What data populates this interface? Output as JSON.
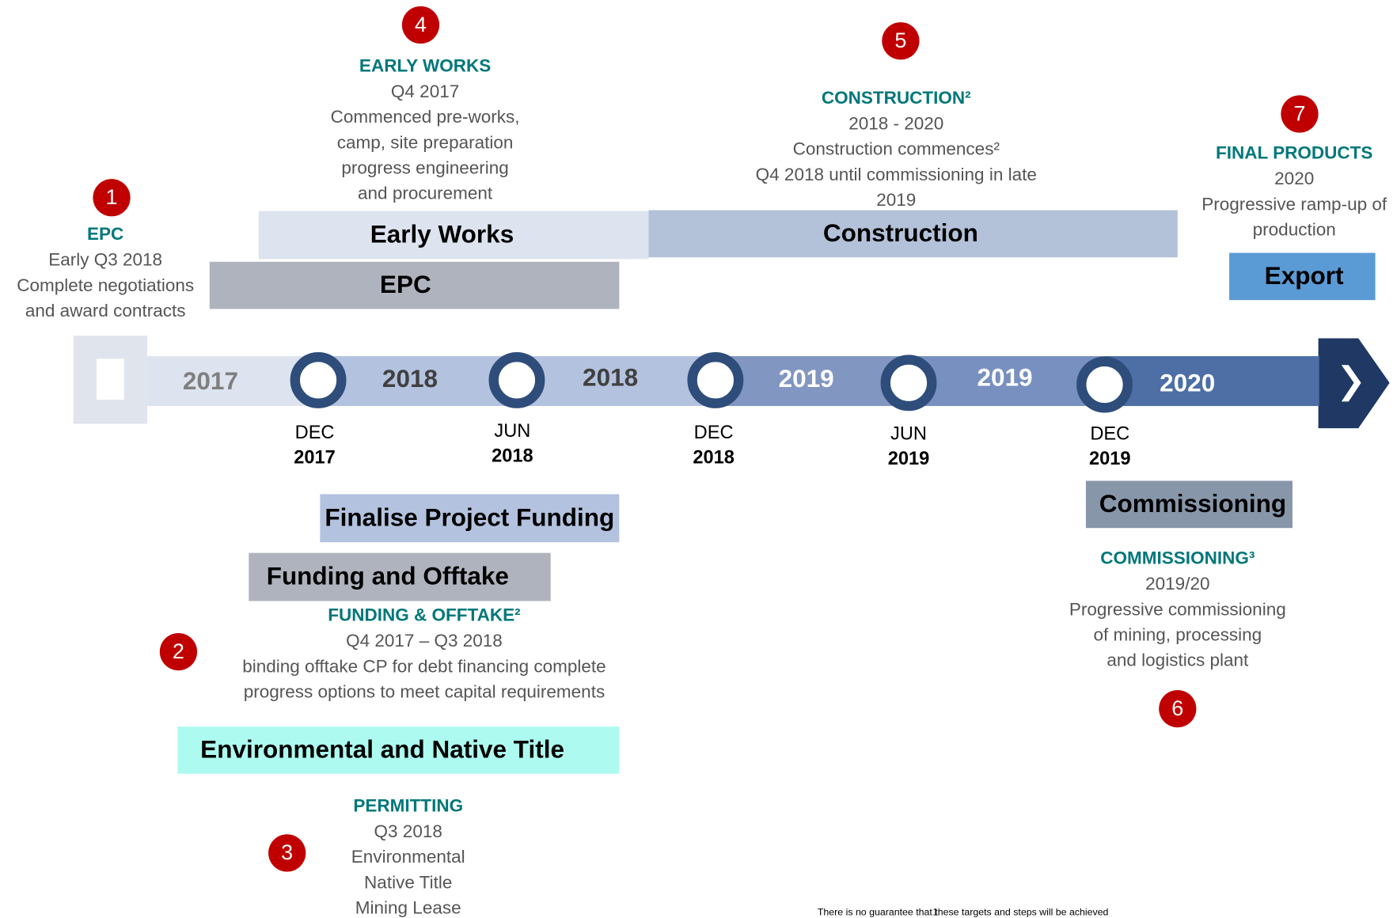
{
  "milestones": [
    {
      "number": "1",
      "heading": "EPC",
      "lines": [
        "Early Q3 2018",
        "Complete negotiations",
        "and award contracts"
      ]
    },
    {
      "number": "4",
      "heading": "EARLY WORKS",
      "lines": [
        "Q4 2017",
        "Commenced pre-works,",
        "camp, site preparation",
        "progress engineering",
        "and procurement"
      ]
    },
    {
      "number": "5",
      "heading": "CONSTRUCTION²",
      "lines": [
        "2018 - 2020",
        "Construction commences²",
        "Q4 2018 until commissioning in late",
        "2019"
      ]
    },
    {
      "number": "7",
      "heading": "FINAL PRODUCTS",
      "lines": [
        "2020",
        "Progressive ramp-up of",
        "production"
      ]
    },
    {
      "number": "2",
      "heading": "FUNDING & OFFTAKE²",
      "lines": [
        "Q4 2017 – Q3 2018",
        "binding offtake CP for debt financing complete",
        "progress options to meet capital requirements"
      ]
    },
    {
      "number": "6",
      "heading": "COMMISSIONING³",
      "lines": [
        "2019/20",
        "Progressive commissioning",
        "of mining, processing",
        "and logistics plant"
      ]
    },
    {
      "number": "3",
      "heading": "PERMITTING",
      "lines": [
        "Q3 2018",
        "Environmental",
        "Native Title",
        "Mining Lease"
      ]
    }
  ],
  "bars": [
    "Early Works",
    "Construction",
    "EPC",
    "Export",
    "Commissioning",
    "Finalise Project Funding",
    "Funding and Offtake",
    "Environmental and Native Title"
  ],
  "timeline": {
    "segments": [
      "2017",
      "2018",
      "2018",
      "2019",
      "2019",
      "2020"
    ],
    "markers": [
      {
        "month": "DEC",
        "year": "2017"
      },
      {
        "month": "JUN",
        "year": "2018"
      },
      {
        "month": "DEC",
        "year": "2018"
      },
      {
        "month": "JUN",
        "year": "2019"
      },
      {
        "month": "DEC",
        "year": "2019"
      }
    ]
  },
  "footnote": {
    "number": "1",
    "text": "There is no guarantee that these targets and steps will be achieved"
  }
}
